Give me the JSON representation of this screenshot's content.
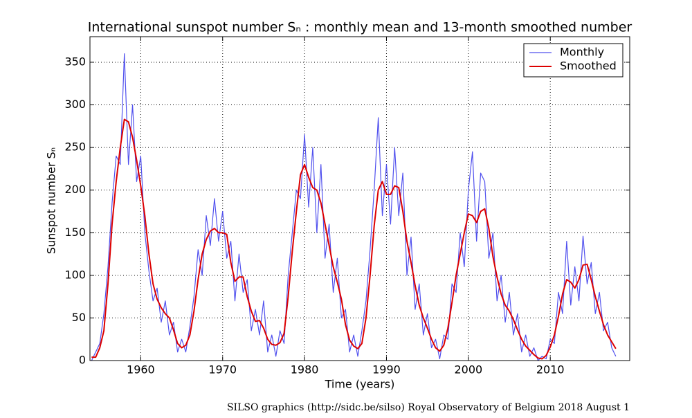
{
  "chart_data": {
    "type": "line",
    "title": "International sunspot number Sₙ : monthly mean and 13-month smoothed number",
    "xlabel": "Time (years)",
    "ylabel": "Sunspot number Sₙ",
    "credit": "SILSO graphics (http://sidc.be/silso)  Royal Observatory of Belgium  2018 August 1",
    "xlim": [
      1953.8,
      2019.7
    ],
    "ylim": [
      0,
      380
    ],
    "xticks": [
      1960,
      1970,
      1980,
      1990,
      2000,
      2010
    ],
    "yticks": [
      0,
      50,
      100,
      150,
      200,
      250,
      300,
      350
    ],
    "grid": true,
    "legend": "upper right",
    "x": [
      1954,
      1954.5,
      1955,
      1955.5,
      1956,
      1956.5,
      1957,
      1957.5,
      1958,
      1958.5,
      1959,
      1959.5,
      1960,
      1960.5,
      1961,
      1961.5,
      1962,
      1962.5,
      1963,
      1963.5,
      1964,
      1964.5,
      1965,
      1965.5,
      1966,
      1966.5,
      1967,
      1967.5,
      1968,
      1968.5,
      1969,
      1969.5,
      1970,
      1970.5,
      1971,
      1971.5,
      1972,
      1972.5,
      1973,
      1973.5,
      1974,
      1974.5,
      1975,
      1975.5,
      1976,
      1976.5,
      1977,
      1977.5,
      1978,
      1978.5,
      1979,
      1979.5,
      1980,
      1980.5,
      1981,
      1981.5,
      1982,
      1982.5,
      1983,
      1983.5,
      1984,
      1984.5,
      1985,
      1985.5,
      1986,
      1986.5,
      1987,
      1987.5,
      1988,
      1988.5,
      1989,
      1989.5,
      1990,
      1990.5,
      1991,
      1991.5,
      1992,
      1992.5,
      1993,
      1993.5,
      1994,
      1994.5,
      1995,
      1995.5,
      1996,
      1996.5,
      1997,
      1997.5,
      1998,
      1998.5,
      1999,
      1999.5,
      2000,
      2000.5,
      2001,
      2001.5,
      2002,
      2002.5,
      2003,
      2003.5,
      2004,
      2004.5,
      2005,
      2005.5,
      2006,
      2006.5,
      2007,
      2007.5,
      2008,
      2008.5,
      2009,
      2009.5,
      2010,
      2010.5,
      2011,
      2011.5,
      2012,
      2012.5,
      2013,
      2013.5,
      2014,
      2014.5,
      2015,
      2015.5,
      2016,
      2016.5,
      2017,
      2017.5,
      2018
    ],
    "series": [
      {
        "name": "Monthly",
        "color": "#5050ee",
        "width": 1.2,
        "values": [
          0,
          10,
          20,
          55,
          110,
          185,
          240,
          230,
          360,
          230,
          300,
          210,
          240,
          150,
          105,
          70,
          85,
          45,
          70,
          30,
          45,
          10,
          25,
          10,
          40,
          75,
          130,
          100,
          170,
          135,
          190,
          140,
          175,
          120,
          140,
          70,
          125,
          80,
          95,
          35,
          60,
          30,
          70,
          10,
          30,
          5,
          35,
          20,
          100,
          150,
          200,
          190,
          265,
          180,
          250,
          150,
          230,
          120,
          160,
          80,
          120,
          50,
          60,
          10,
          30,
          5,
          35,
          70,
          130,
          200,
          285,
          170,
          230,
          160,
          250,
          170,
          220,
          100,
          145,
          60,
          90,
          30,
          55,
          15,
          25,
          2,
          30,
          25,
          90,
          80,
          150,
          110,
          200,
          245,
          140,
          220,
          210,
          120,
          150,
          70,
          100,
          45,
          80,
          30,
          55,
          10,
          30,
          5,
          15,
          0,
          5,
          2,
          25,
          20,
          80,
          55,
          140,
          65,
          110,
          70,
          146,
          90,
          115,
          55,
          80,
          35,
          45,
          15,
          5
        ]
      },
      {
        "name": "Smoothed",
        "color": "#dd0000",
        "width": 2,
        "values": [
          4,
          4,
          15,
          35,
          90,
          160,
          210,
          250,
          283,
          280,
          262,
          235,
          205,
          170,
          125,
          90,
          72,
          62,
          55,
          50,
          36,
          20,
          15,
          18,
          30,
          58,
          95,
          125,
          142,
          152,
          155,
          150,
          150,
          148,
          115,
          93,
          98,
          98,
          75,
          58,
          46,
          47,
          38,
          25,
          19,
          18,
          21,
          32,
          75,
          128,
          175,
          218,
          230,
          215,
          203,
          200,
          185,
          160,
          135,
          110,
          92,
          72,
          42,
          24,
          17,
          14,
          20,
          50,
          100,
          158,
          200,
          210,
          195,
          195,
          205,
          203,
          175,
          140,
          115,
          88,
          65,
          50,
          38,
          25,
          15,
          11,
          18,
          38,
          68,
          100,
          125,
          150,
          172,
          170,
          162,
          175,
          178,
          155,
          122,
          98,
          78,
          65,
          58,
          48,
          36,
          25,
          17,
          12,
          7,
          3,
          2,
          6,
          16,
          30,
          52,
          78,
          95,
          92,
          85,
          95,
          112,
          113,
          95,
          75,
          58,
          42,
          30,
          22,
          14
        ]
      }
    ]
  }
}
